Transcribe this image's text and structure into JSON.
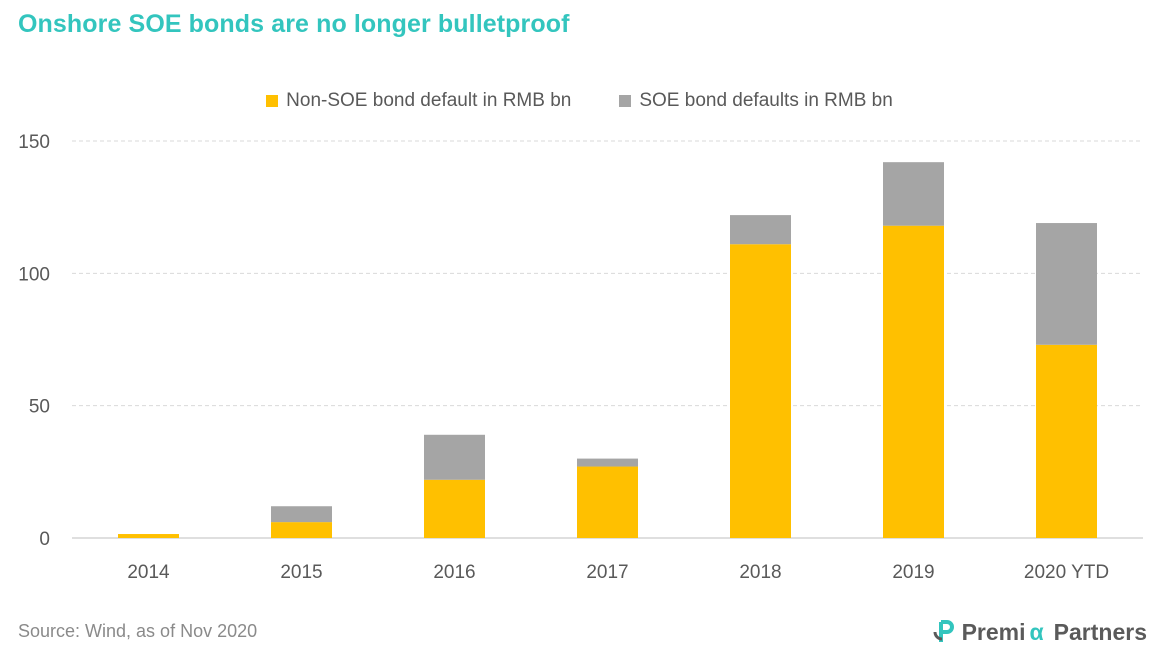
{
  "title": "Onshore SOE bonds are no longer bulletproof",
  "source": "Source: Wind, as of Nov 2020",
  "logo": {
    "pre": "Premi",
    "alpha": "α",
    "post": "Partners"
  },
  "colors": {
    "title": "#33C5BE",
    "non_soe": "#FFC000",
    "soe": "#A5A5A5",
    "grid": "#D9D9D9",
    "axis": "#BFBFBF",
    "text": "#595959"
  },
  "chart_data": {
    "type": "bar",
    "stacked": true,
    "title": "Onshore SOE bonds are no longer bulletproof",
    "categories": [
      "2014",
      "2015",
      "2016",
      "2017",
      "2018",
      "2019",
      "2020 YTD"
    ],
    "series": [
      {
        "name": "Non-SOE bond default in RMB bn",
        "values": [
          1.5,
          6,
          22,
          27,
          111,
          118,
          73
        ]
      },
      {
        "name": "SOE bond defaults in RMB bn",
        "values": [
          0,
          6,
          17,
          3,
          11,
          24,
          46
        ]
      }
    ],
    "ylim": [
      0,
      150
    ],
    "yticks": [
      0,
      50,
      100,
      150
    ],
    "grid": true,
    "legend": "top-center"
  }
}
